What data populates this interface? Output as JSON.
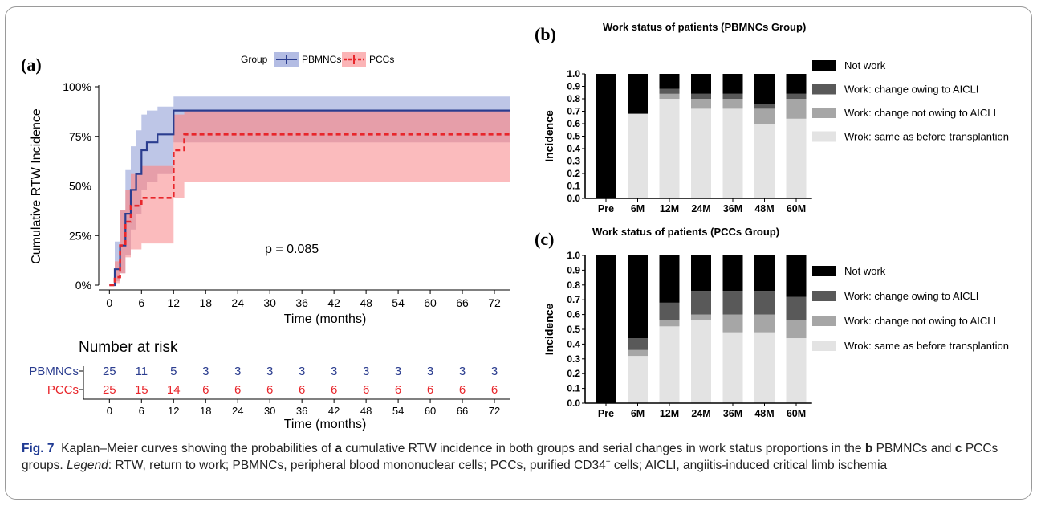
{
  "caption": {
    "fig_label": "Fig. 7",
    "p1": "Kaplan–Meier curves showing the probabilities of",
    "a": "a",
    "p2": "cumulative RTW incidence in both groups and serial changes in work status proportions in the",
    "b": "b",
    "p3": "PBMNCs and",
    "c": "c",
    "p4": "PCCs groups.",
    "legend_word": "Legend",
    "p5": ": RTW, return to work; PBMNCs, peripheral blood mononuclear cells; PCCs, purified CD34",
    "sup": "+",
    "p6": "cells; AICLI, angiitis-induced critical limb ischemia"
  },
  "colors": {
    "pbmncs": "#2b3d8f",
    "pbmncs_band": "#b3bce3",
    "pccs": "#e8262b",
    "pccs_band": "#fbb4b6",
    "overlap": "#d88b9b",
    "not_work": "#000000",
    "work_owing": "#595959",
    "work_not_owing": "#a6a6a6",
    "same": "#e3e3e3"
  },
  "chart_data": [
    {
      "type": "line",
      "panel_label": "(a)",
      "legend_title": "Group",
      "ylabel": "Cumulative RTW Incidence",
      "xlabel": "Time (months)",
      "xlim": [
        -2,
        75
      ],
      "ylim": [
        0,
        100
      ],
      "x_ticks": [
        0,
        6,
        12,
        18,
        24,
        30,
        36,
        42,
        48,
        54,
        60,
        66,
        72
      ],
      "y_ticks": [
        "0%",
        "25%",
        "50%",
        "75%",
        "100%"
      ],
      "annotation": "p = 0.085",
      "series": [
        {
          "name": "PBMNCs",
          "steps": [
            [
              0,
              0
            ],
            [
              1,
              8
            ],
            [
              2,
              20
            ],
            [
              3,
              36
            ],
            [
              4,
              48
            ],
            [
              5,
              56
            ],
            [
              6,
              68
            ],
            [
              7,
              72
            ],
            [
              9,
              76
            ],
            [
              12,
              88
            ],
            [
              75,
              88
            ]
          ],
          "ci_upper": [
            [
              0,
              0
            ],
            [
              1,
              22
            ],
            [
              2,
              38
            ],
            [
              3,
              58
            ],
            [
              4,
              70
            ],
            [
              5,
              78
            ],
            [
              6,
              86
            ],
            [
              7,
              88
            ],
            [
              9,
              90
            ],
            [
              12,
              95
            ],
            [
              75,
              95
            ]
          ],
          "ci_lower": [
            [
              0,
              0
            ],
            [
              1,
              2
            ],
            [
              2,
              6
            ],
            [
              3,
              15
            ],
            [
              4,
              28
            ],
            [
              5,
              36
            ],
            [
              6,
              48
            ],
            [
              7,
              52
            ],
            [
              9,
              56
            ],
            [
              12,
              72
            ],
            [
              75,
              72
            ]
          ]
        },
        {
          "name": "PCCs",
          "steps": [
            [
              0,
              0
            ],
            [
              1,
              4
            ],
            [
              2,
              20
            ],
            [
              3,
              32
            ],
            [
              4,
              40
            ],
            [
              6,
              44
            ],
            [
              12,
              68
            ],
            [
              14,
              76
            ],
            [
              75,
              76
            ]
          ],
          "ci_upper": [
            [
              0,
              0
            ],
            [
              1,
              12
            ],
            [
              2,
              38
            ],
            [
              3,
              48
            ],
            [
              4,
              56
            ],
            [
              6,
              60
            ],
            [
              12,
              86
            ],
            [
              14,
              88
            ],
            [
              75,
              88
            ]
          ],
          "ci_lower": [
            [
              0,
              0
            ],
            [
              1,
              1
            ],
            [
              2,
              6
            ],
            [
              3,
              14
            ],
            [
              4,
              18
            ],
            [
              6,
              21
            ],
            [
              12,
              44
            ],
            [
              14,
              52
            ],
            [
              75,
              52
            ]
          ]
        }
      ],
      "risk_table": {
        "title": "Number at risk",
        "xlabel": "Time (months)",
        "rows": [
          {
            "name": "PBMNCs",
            "values": [
              25,
              11,
              5,
              3,
              3,
              3,
              3,
              3,
              3,
              3,
              3,
              3,
              3
            ]
          },
          {
            "name": "PCCs",
            "values": [
              25,
              15,
              14,
              6,
              6,
              6,
              6,
              6,
              6,
              6,
              6,
              6,
              6
            ]
          }
        ]
      }
    },
    {
      "type": "bar",
      "panel_label": "(b)",
      "title": "Work status of patients (PBMNCs Group)",
      "ylabel": "Incidence",
      "ylim": [
        0,
        1
      ],
      "y_ticks": [
        "0.0",
        "0.1",
        "0.2",
        "0.3",
        "0.4",
        "0.5",
        "0.6",
        "0.7",
        "0.8",
        "0.9",
        "1.0"
      ],
      "categories": [
        "Pre",
        "6M",
        "12M",
        "24M",
        "36M",
        "48M",
        "60M"
      ],
      "series": [
        {
          "name": "Wrok: same as before transplantion",
          "values": [
            0,
            0.68,
            0.8,
            0.72,
            0.72,
            0.6,
            0.64
          ]
        },
        {
          "name": "Work: change not owing to AICLI",
          "values": [
            0,
            0,
            0.04,
            0.08,
            0.08,
            0.12,
            0.16
          ]
        },
        {
          "name": "Work: change owing to AICLI",
          "values": [
            0,
            0,
            0.04,
            0.04,
            0.04,
            0.04,
            0.04
          ]
        },
        {
          "name": "Not work",
          "values": [
            1.0,
            0.32,
            0.12,
            0.16,
            0.16,
            0.24,
            0.16
          ]
        }
      ]
    },
    {
      "type": "bar",
      "panel_label": "(c)",
      "title": "Work status of patients (PCCs Group)",
      "ylabel": "Incidence",
      "ylim": [
        0,
        1
      ],
      "y_ticks": [
        "0.0",
        "0.1",
        "0.2",
        "0.3",
        "0.4",
        "0.5",
        "0.6",
        "0.7",
        "0.8",
        "0.9",
        "1.0"
      ],
      "categories": [
        "Pre",
        "6M",
        "12M",
        "24M",
        "36M",
        "48M",
        "60M"
      ],
      "series": [
        {
          "name": "Wrok: same as before transplantion",
          "values": [
            0,
            0.32,
            0.52,
            0.56,
            0.48,
            0.48,
            0.44
          ]
        },
        {
          "name": "Work: change not owing to AICLI",
          "values": [
            0,
            0.04,
            0.04,
            0.04,
            0.12,
            0.12,
            0.12
          ]
        },
        {
          "name": "Work: change owing to AICLI",
          "values": [
            0,
            0.08,
            0.12,
            0.16,
            0.16,
            0.16,
            0.16
          ]
        },
        {
          "name": "Not work",
          "values": [
            1.0,
            0.56,
            0.32,
            0.24,
            0.24,
            0.24,
            0.28
          ]
        }
      ]
    }
  ]
}
